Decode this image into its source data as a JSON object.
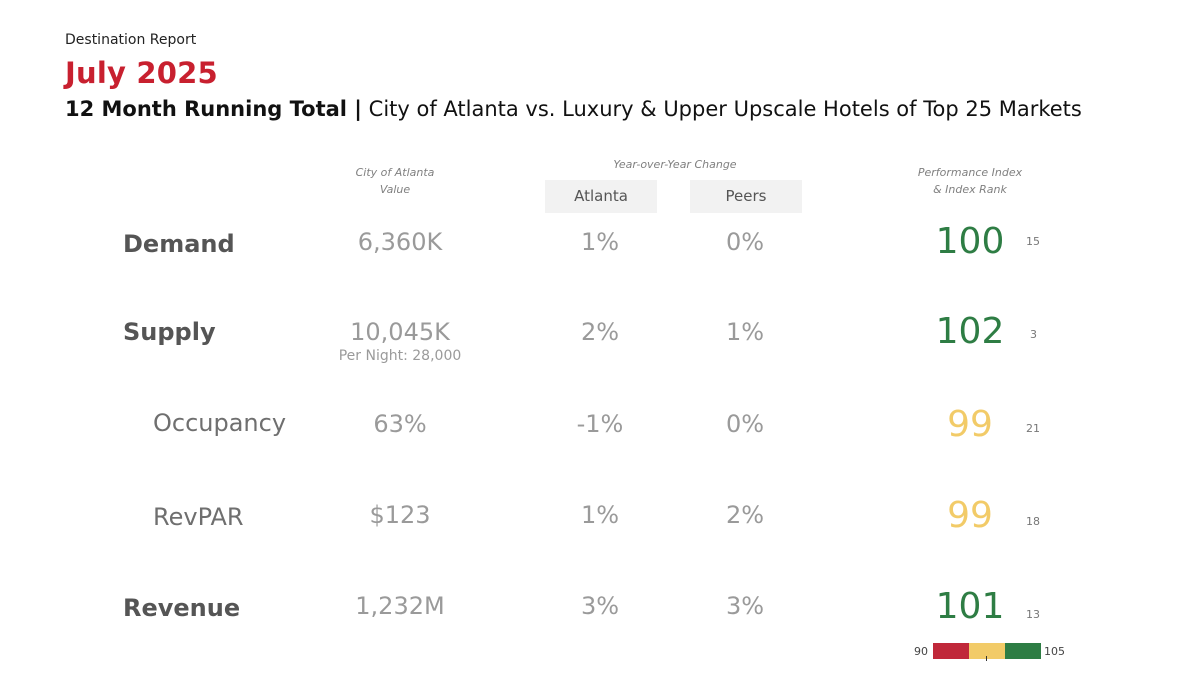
{
  "header": {
    "report_type": "Destination Report",
    "month": "July 2025",
    "subtitle_bold": "12 Month Running Total |",
    "subtitle_rest": " City of Atlanta vs. Luxury & Upper Upscale Hotels of Top 25 Markets"
  },
  "columns": {
    "value_line1": "City of Atlanta",
    "value_line2": "Value",
    "yoy_label": "Year-over-Year Change",
    "yoy_atlanta": "Atlanta",
    "yoy_peers": "Peers",
    "index_line1": "Performance Index",
    "index_line2": "& Index Rank"
  },
  "rows": [
    {
      "label": "Demand",
      "value": "6,360K",
      "atlanta": "1%",
      "peers": "0%",
      "index": "100",
      "rank": "15"
    },
    {
      "label": "Supply",
      "value": "10,045K",
      "note": "Per Night: 28,000",
      "atlanta": "2%",
      "peers": "1%",
      "index": "102",
      "rank": "3"
    },
    {
      "label": "Occupancy",
      "value": "63%",
      "atlanta": "-1%",
      "peers": "0%",
      "index": "99",
      "rank": "21"
    },
    {
      "label": "RevPAR",
      "value": "$123",
      "atlanta": "1%",
      "peers": "2%",
      "index": "99",
      "rank": "18"
    },
    {
      "label": "Revenue",
      "value": "1,232M",
      "atlanta": "3%",
      "peers": "3%",
      "index": "101",
      "rank": "13"
    }
  ],
  "legend": {
    "min": "90",
    "max": "105",
    "colors": [
      "#c0283a",
      "#f2cb68",
      "#2e7d44"
    ]
  },
  "colors": {
    "accent_red": "#c8202f",
    "index_green": "#2e7d44",
    "index_yellow": "#f2cb68"
  }
}
